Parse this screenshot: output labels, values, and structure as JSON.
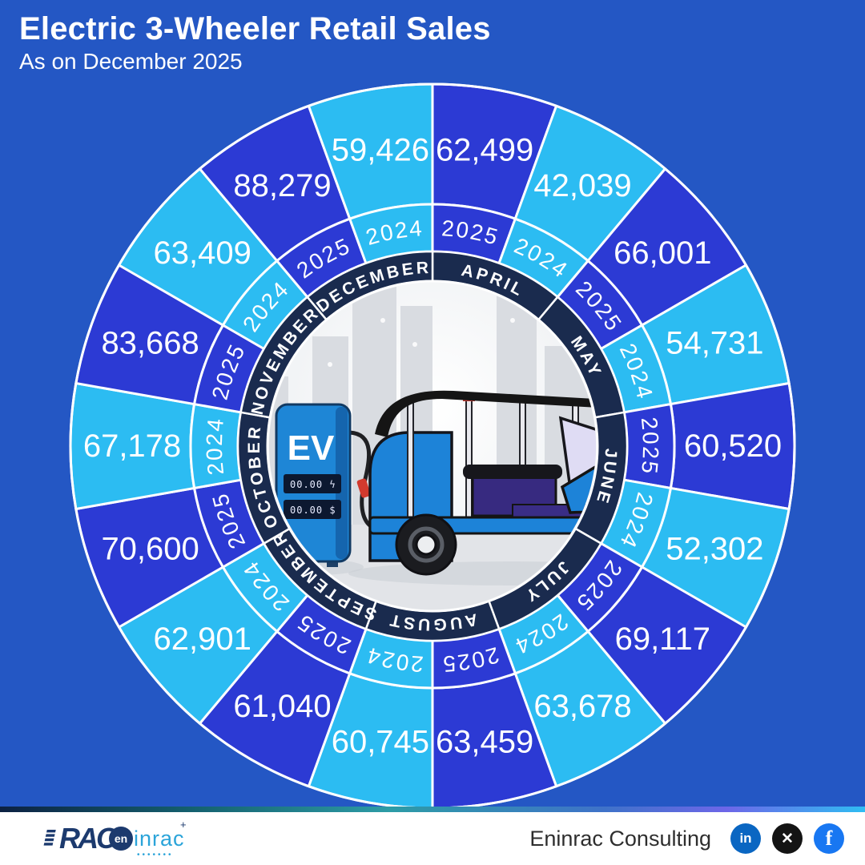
{
  "header": {
    "title": "Electric 3-Wheeler Retail Sales",
    "subtitle": "As on December 2025"
  },
  "palette": {
    "background": "#2457C4",
    "segment_2025": "#2C3AD4",
    "segment_2024": "#2CBCF2",
    "month_ring": "#1A2B4E",
    "divider": "#FFFFFF",
    "value_text": "#FFFFFF"
  },
  "chart_data": {
    "type": "pie",
    "variant": "radial rings — 9 months clockwise from 12 o'clock, each month split into a 2025 wedge (first, dark blue) and a 2024 wedge (second, sky blue); outer ring shows values, middle ring shows year labels, inner navy ring shows month names",
    "title": "Electric 3-Wheeler Retail Sales",
    "subtitle": "As on December 2025",
    "categories": [
      "APRIL",
      "MAY",
      "JUNE",
      "JULY",
      "AUGUST",
      "SEPTEMBER",
      "OCTOBER",
      "NOVEMBER",
      "DECEMBER"
    ],
    "series": [
      {
        "name": "2025",
        "color": "#2C3AD4",
        "values": [
          62499,
          66001,
          60520,
          69117,
          63459,
          61040,
          70600,
          83668,
          88279
        ]
      },
      {
        "name": "2024",
        "color": "#2CBCF2",
        "values": [
          42039,
          54731,
          52302,
          63678,
          60745,
          62901,
          67178,
          63409,
          59426
        ]
      }
    ],
    "legend_position": "year labels inside each wedge",
    "grid": false
  },
  "center": {
    "ev_label": "EV",
    "screen1": "00.00 ϟ",
    "screen2": "00.00 $"
  },
  "footer": {
    "logo_main": "RAC",
    "logo_circle": "en",
    "logo_rest": "inrac",
    "logo_star": "+",
    "logo_dots": "•••••••",
    "company": "Eninrac Consulting",
    "social": [
      {
        "name": "linkedin",
        "glyph": "in",
        "color": "#0A66C2"
      },
      {
        "name": "x",
        "glyph": "✕",
        "color": "#141414"
      },
      {
        "name": "facebook",
        "glyph": "f",
        "color": "#1877F2"
      }
    ]
  }
}
